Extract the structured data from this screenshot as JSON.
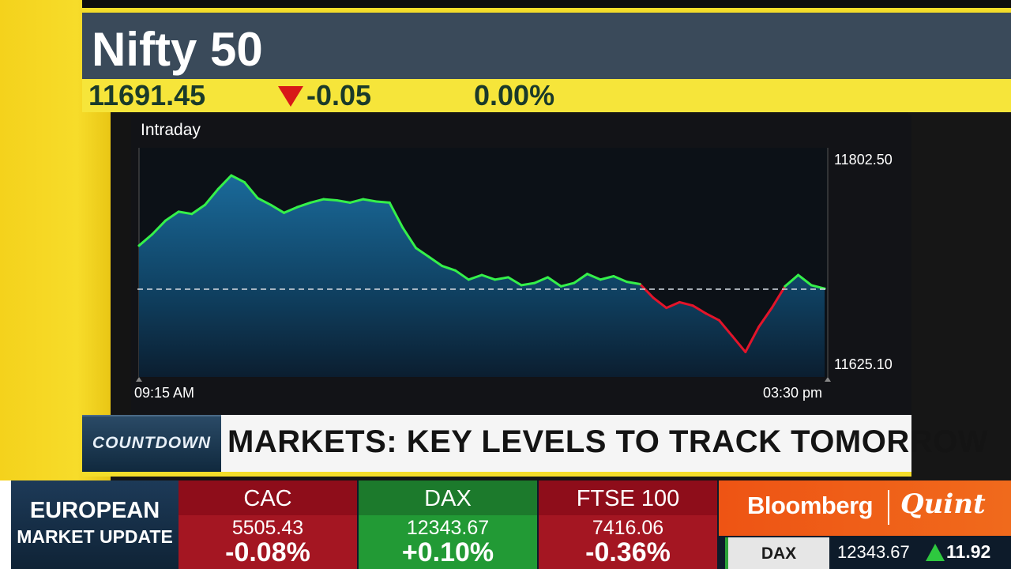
{
  "title": "Nifty 50",
  "quote": {
    "price": "11691.45",
    "change": "-0.05",
    "percent": "0.00%",
    "direction_icon": "down-arrow-icon",
    "direction_color": "#d81818"
  },
  "chart": {
    "label": "Intraday",
    "y_high": "11802.50",
    "y_low": "11625.10",
    "x_start": "09:15 AM",
    "x_end": "03:30 pm"
  },
  "chart_data": {
    "type": "line",
    "ylim": [
      11625.1,
      11802.5
    ],
    "reference_value": 11691.5,
    "series": [
      {
        "values": [
          11730,
          11740,
          11752,
          11760,
          11758,
          11766,
          11780,
          11792,
          11786,
          11772,
          11766,
          11759,
          11764,
          11768,
          11771,
          11770,
          11768,
          11771,
          11769,
          11768,
          11746,
          11728,
          11720,
          11712,
          11708,
          11700,
          11704,
          11700,
          11702,
          11695,
          11697,
          11702,
          11694,
          11697,
          11705,
          11700,
          11703,
          11698,
          11696,
          11684,
          11675,
          11680,
          11677,
          11670,
          11664,
          11650,
          11636,
          11658,
          11675,
          11694,
          11704,
          11695,
          11692
        ]
      }
    ]
  },
  "headline": {
    "tag": "COUNTDOWN",
    "text": "MARKETS: KEY LEVELS TO TRACK TOMORROW"
  },
  "ticker": {
    "label_line1": "EUROPEAN",
    "label_line2": "MARKET UPDATE",
    "indices": [
      {
        "name": "CAC",
        "value": "5505.43",
        "change": "-0.08%"
      },
      {
        "name": "DAX",
        "value": "12343.67",
        "change": "+0.10%"
      },
      {
        "name": "FTSE 100",
        "value": "7416.06",
        "change": "-0.36%"
      }
    ],
    "brand_part1": "Bloomberg",
    "brand_part2": "Quint",
    "mini": {
      "name": "DAX",
      "value": "12343.67",
      "change": "11.92",
      "direction_icon": "up-arrow-icon"
    }
  }
}
